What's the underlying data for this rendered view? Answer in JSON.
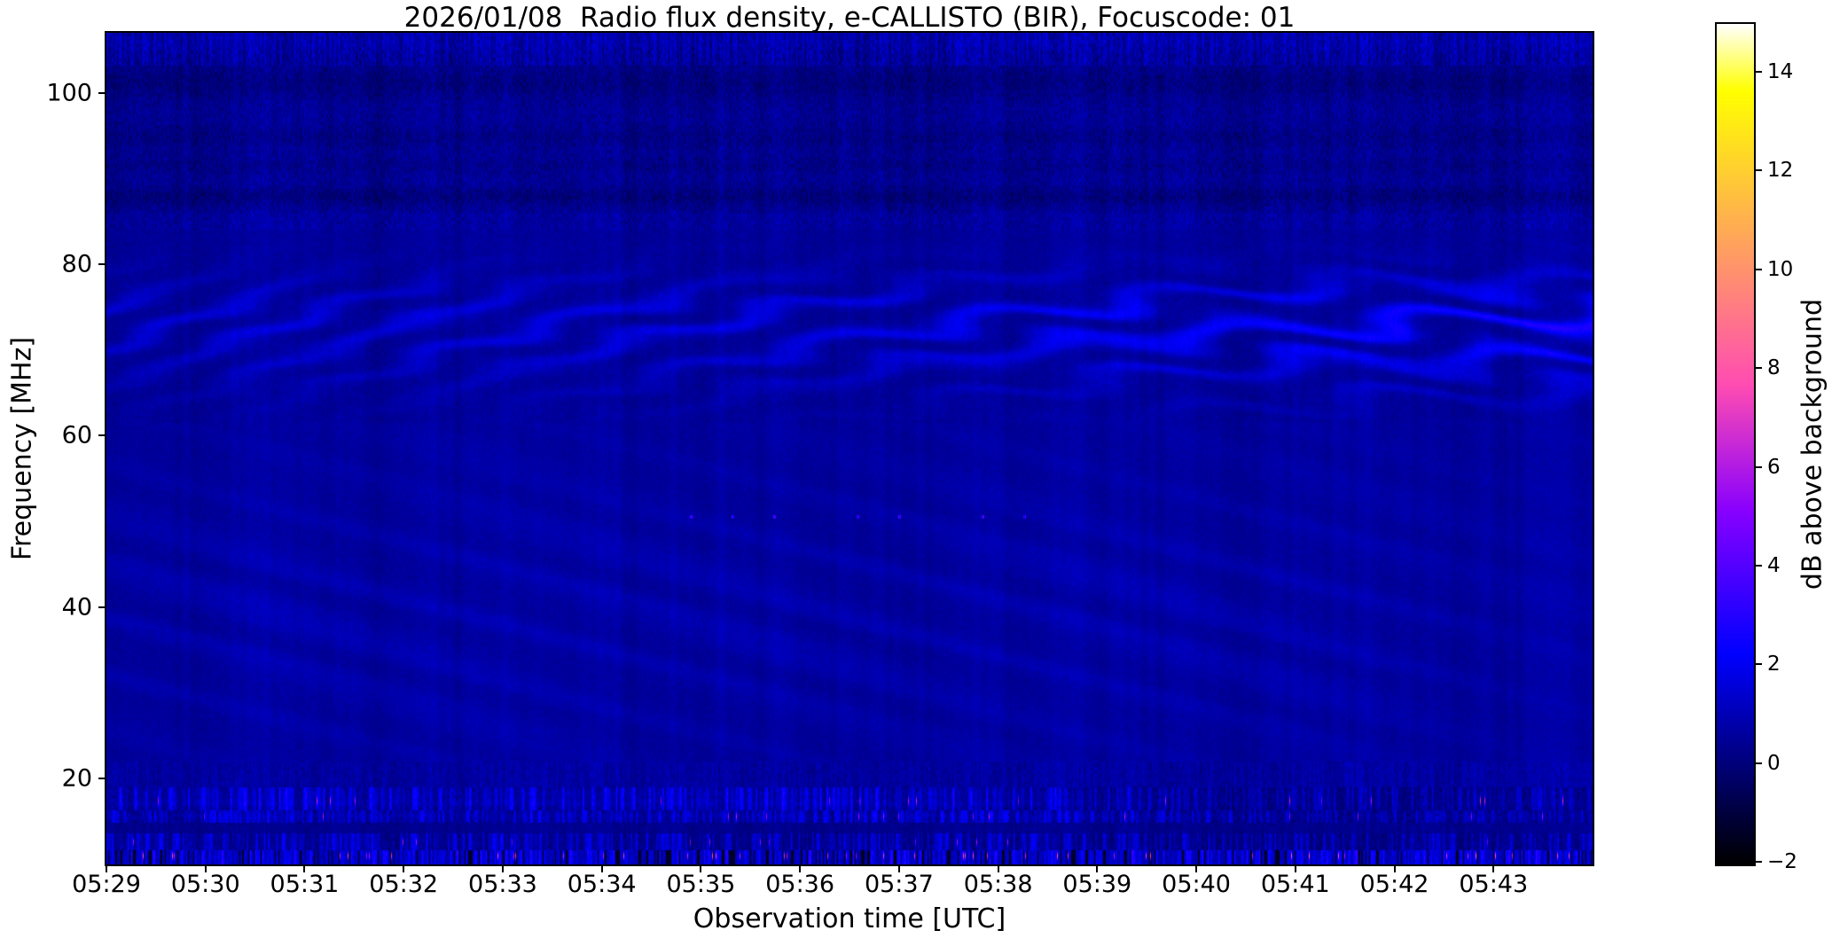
{
  "chart_data": {
    "type": "heatmap",
    "subtype": "dynamic-radio-spectrogram",
    "title": "2026/01/08  Radio flux density, e-CALLISTO (BIR), Focuscode: 01",
    "xlabel": "Observation time [UTC]",
    "ylabel": "Frequency [MHz]",
    "x_ticks": [
      "05:29",
      "05:30",
      "05:31",
      "05:32",
      "05:33",
      "05:34",
      "05:35",
      "05:36",
      "05:37",
      "05:38",
      "05:39",
      "05:40",
      "05:41",
      "05:42",
      "05:43"
    ],
    "x_range": [
      "05:29:00",
      "05:44:00"
    ],
    "y_ticks": [
      100,
      80,
      60,
      40,
      20
    ],
    "y_range_mhz": [
      10,
      107
    ],
    "grid": false,
    "colorbar": {
      "label": "dB above background",
      "tick_labels": [
        "14",
        "12",
        "10",
        "8",
        "6",
        "4",
        "2",
        "0",
        "−2"
      ],
      "tick_values": [
        14,
        12,
        10,
        8,
        6,
        4,
        2,
        0,
        -2
      ],
      "range": [
        -2.05,
        14.97
      ],
      "colormap": "gnuplot2",
      "position": "right"
    },
    "background_level_db": 0.5,
    "features": [
      {
        "name": "broadband-noise-top",
        "freq_mhz": [
          103.2,
          107
        ],
        "level_db": 1.2,
        "texture": "vertical speckle, brighter band at top edge"
      },
      {
        "name": "dark-horizontal-lanes",
        "freq_mhz": [
          84,
          103
        ],
        "lanes_mhz": [
          101.2,
          94.8,
          91.5,
          87.9
        ],
        "level_db": -0.5,
        "texture": "dark lanes with dense blue/black speckle"
      },
      {
        "name": "drifting-interference-fringes",
        "freq_mhz": [
          61.5,
          84
        ],
        "peak_mhz": 73.5,
        "fringe_spacing_mhz": 4.55,
        "level_db": 2.5,
        "behavior": "diagonal fringes early (05:29-05:37) flattening to wavy horizontal bands after 05:38, brightest 05:39-05:44"
      },
      {
        "name": "faint-diagonal-ripples",
        "freq_mhz": [
          22,
          58
        ],
        "fringe_spacing_mhz": 6.2,
        "level_db": 0.9,
        "behavior": "weak stripes drifting downward in frequency with time"
      },
      {
        "name": "dotted-carrier-row",
        "freq_mhz": 50.5,
        "time_range": [
          "05:33",
          "05:39"
        ],
        "level_db": 2.5,
        "texture": "row of tiny bright dashes"
      },
      {
        "name": "rfi-band",
        "freq_mhz": [
          16.3,
          19
        ],
        "level_db": 3,
        "texture": "speckled columns with occasional pink bursts (to ~7 dB), dimmer after 05:38"
      },
      {
        "name": "rfi-band",
        "freq_mhz": [
          14.9,
          16.3
        ],
        "level_db": 2.5,
        "texture": "speckled columns with pink bursts"
      },
      {
        "name": "quiet-gap",
        "freq_mhz": [
          13.6,
          14.9
        ],
        "level_db": 0.3
      },
      {
        "name": "rfi-band",
        "freq_mhz": [
          11.7,
          13.6
        ],
        "level_db": 3,
        "texture": "speckled columns, pink bursts"
      },
      {
        "name": "rfi-band-strong",
        "freq_mhz": [
          10,
          11.7
        ],
        "level_db": 4,
        "texture": "strong blue columns, black dropouts, magenta blobs to ~9 dB, bright cluster near 05:35:30-05:36 and 05:42"
      }
    ]
  }
}
